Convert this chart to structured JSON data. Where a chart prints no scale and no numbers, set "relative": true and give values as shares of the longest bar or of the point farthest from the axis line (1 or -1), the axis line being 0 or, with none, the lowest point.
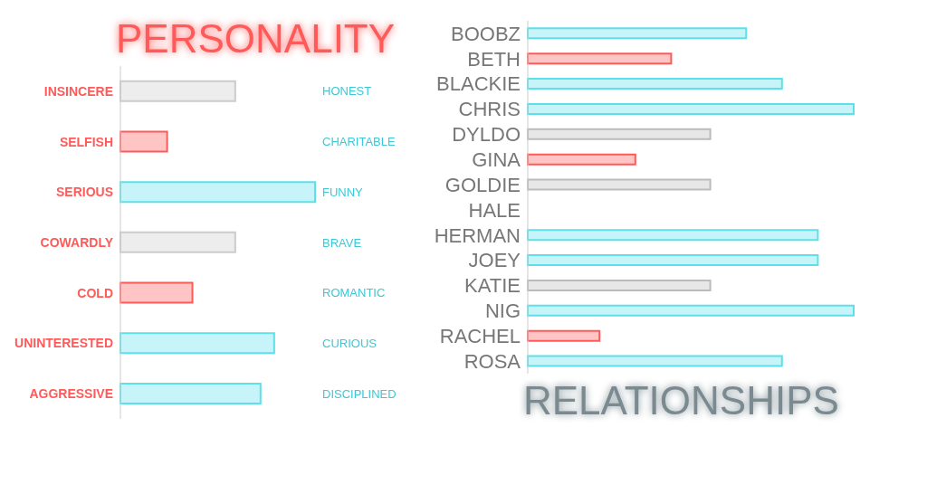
{
  "chart_data": [
    {
      "type": "bar",
      "title": "PERSONALITY",
      "orientation": "horizontal",
      "relative": true,
      "categories": [
        "INSINCERE",
        "SELFISH",
        "SERIOUS",
        "COWARDLY",
        "COLD",
        "UNINTERESTED",
        "AGGRESSIVE"
      ],
      "y2_categories": [
        "HONEST",
        "CHARITABLE",
        "FUNNY",
        "BRAVE",
        "ROMANTIC",
        "CURIOUS",
        "DISCIPLINED"
      ],
      "values": [
        0.59,
        0.24,
        1,
        0.59,
        0.37,
        0.79,
        0.72
      ],
      "colors": [
        "#cccccc",
        "#ff5a5a",
        "#5ee0ea",
        "#cccccc",
        "#ff5a5a",
        "#5ee0ea",
        "#5ee0ea"
      ]
    },
    {
      "type": "bar",
      "title": "RELATIONSHIPS",
      "orientation": "horizontal",
      "relative": true,
      "categories": [
        "BOOBZ",
        "BETH",
        "BLACKIE",
        "CHRIS",
        "DYLDO",
        "GINA",
        "GOLDIE",
        "HALE",
        "HERMAN",
        "JOEY",
        "KATIE",
        "NIG",
        "RACHEL",
        "ROSA"
      ],
      "values": [
        0.67,
        0.44,
        0.78,
        1,
        0.56,
        0.33,
        0.56,
        0,
        0.89,
        0.89,
        0.56,
        1,
        0.22,
        0.78
      ],
      "colors": [
        "#5ee0ea",
        "#ff5a5a",
        "#5ee0ea",
        "#5ee0ea",
        "#bbbbbb",
        "#ff5a5a",
        "#bbbbbb",
        "#bbbbbb",
        "#5ee0ea",
        "#5ee0ea",
        "#bbbbbb",
        "#5ee0ea",
        "#ff5a5a",
        "#5ee0ea"
      ]
    }
  ]
}
